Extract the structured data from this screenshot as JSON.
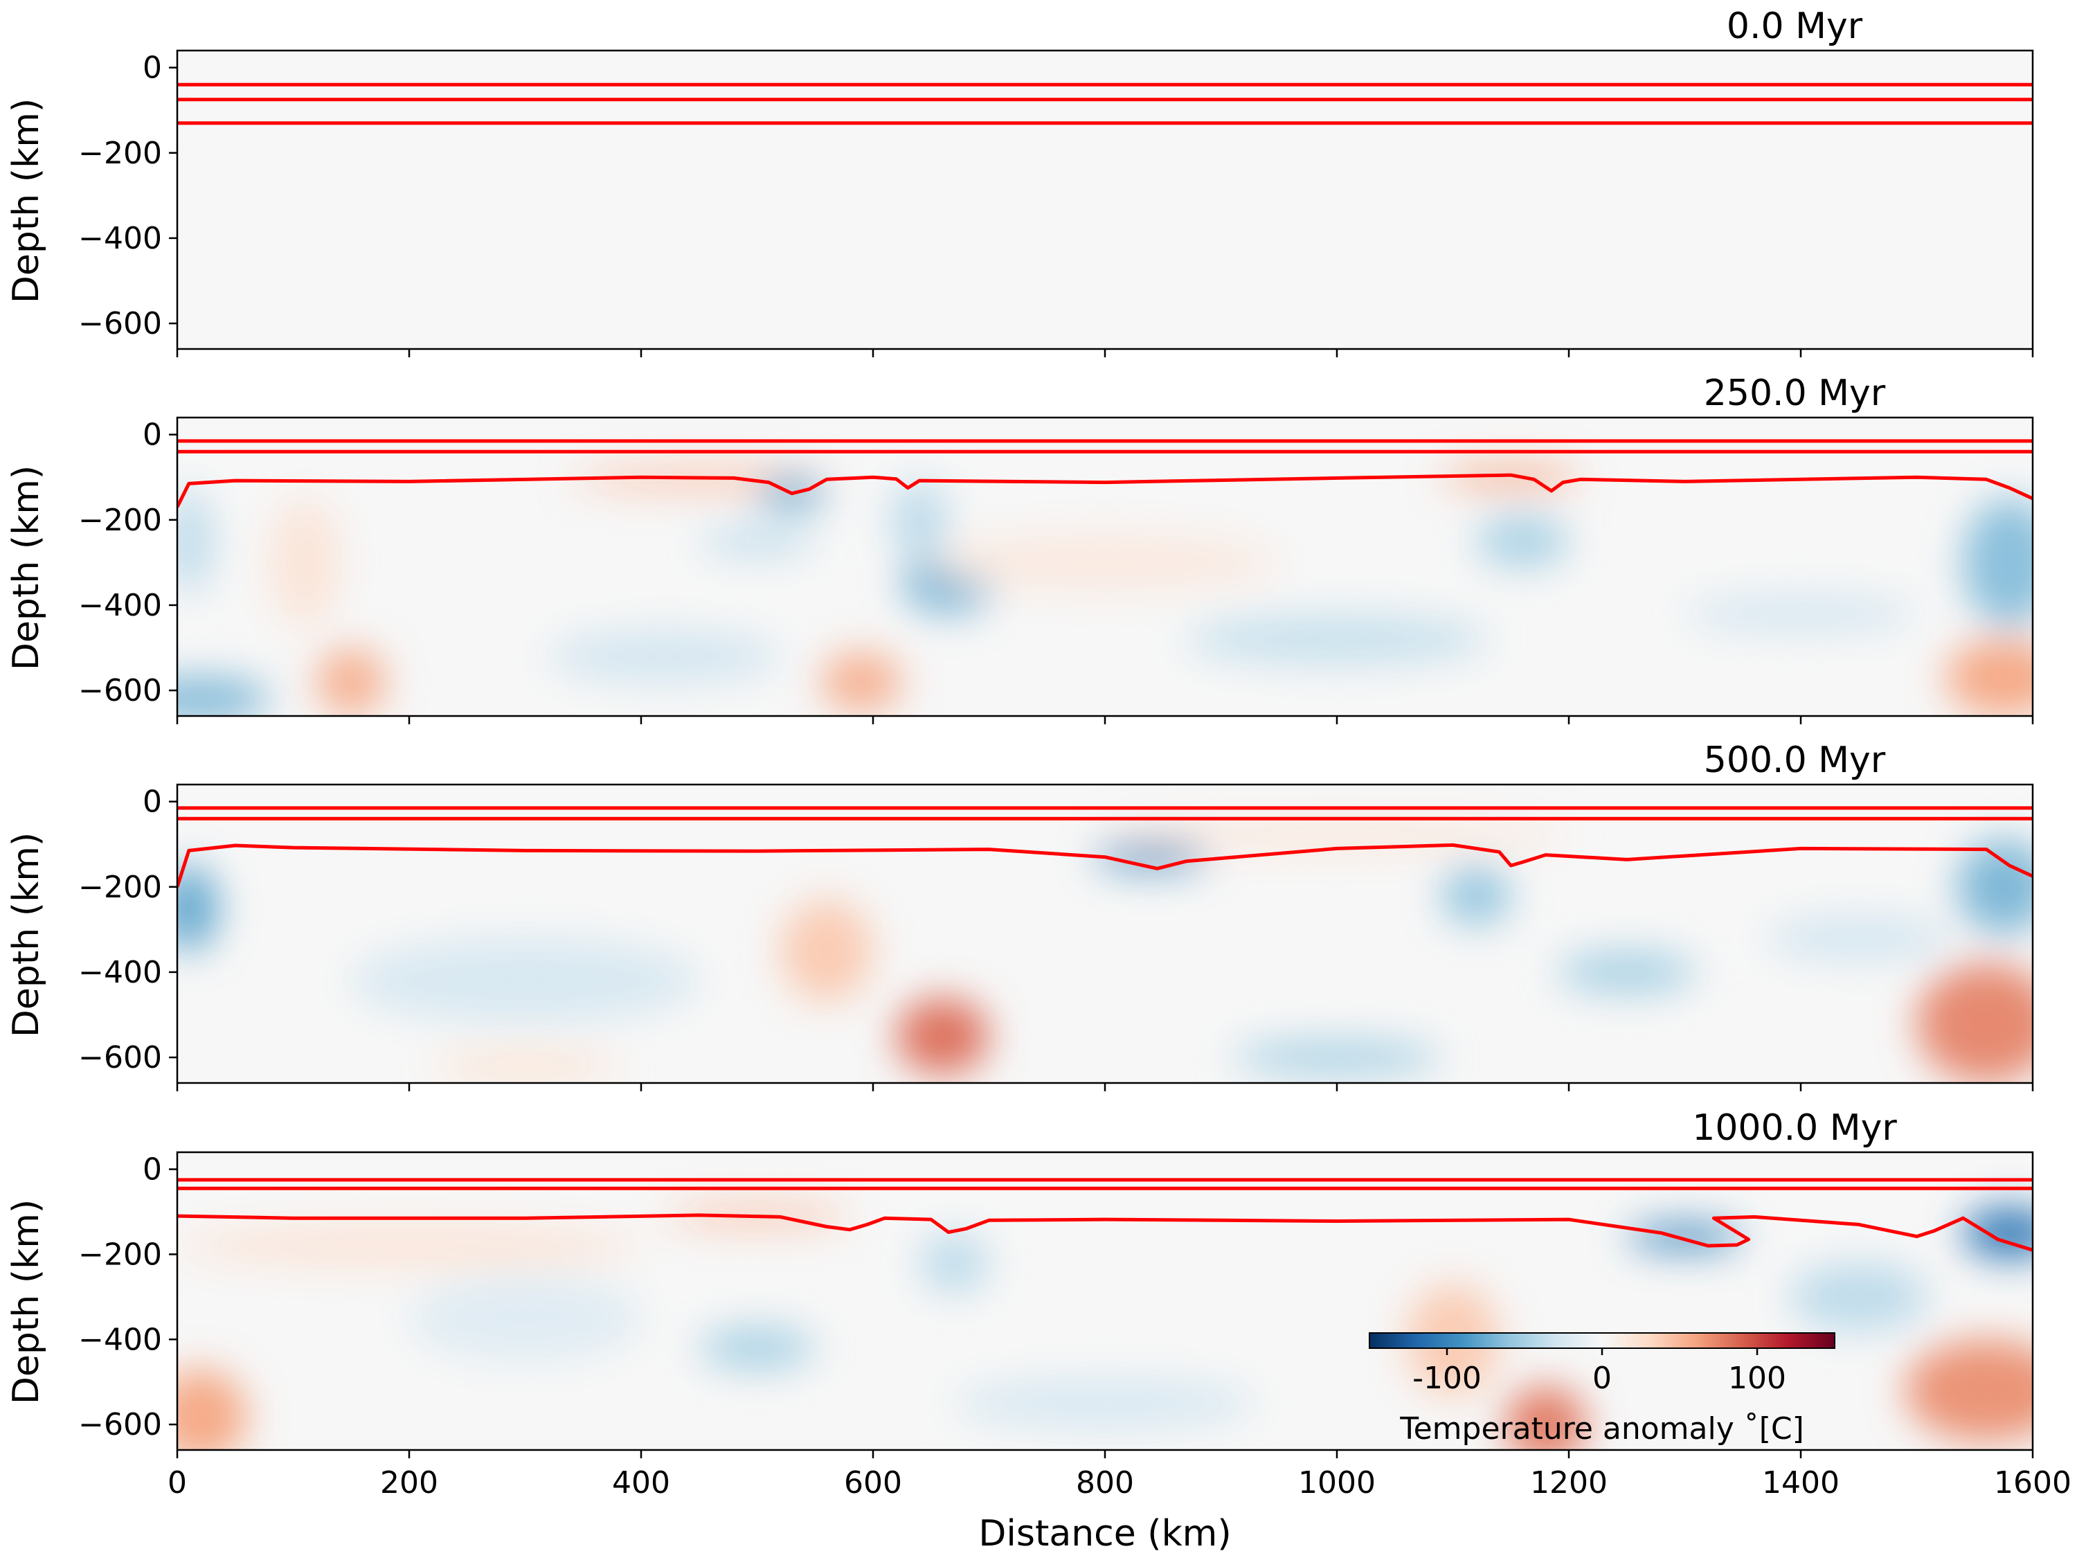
{
  "figure": {
    "xlabel": "Distance (km)",
    "ylabel": "Depth (km)"
  },
  "colorbar": {
    "label": "Temperature anomaly ˚[C]",
    "range": [
      -150,
      150
    ],
    "ticks": [
      -100,
      0,
      100
    ],
    "tick_labels": [
      "-100",
      "0",
      "100"
    ],
    "colormap": "RdBu_r",
    "colors": [
      "#053061",
      "#2166ac",
      "#4393c3",
      "#92c5de",
      "#d1e5f0",
      "#f7f7f7",
      "#fddbc7",
      "#f4a582",
      "#d6604d",
      "#b2182b",
      "#67001f"
    ]
  },
  "chart_data": [
    {
      "type": "heatmap",
      "title": "0.0 Myr",
      "xlabel": "",
      "ylabel": "Depth (km)",
      "xlim": [
        0,
        1600
      ],
      "ylim": [
        -660,
        40
      ],
      "yticks": [
        0,
        -200,
        -400,
        -600
      ],
      "ytick_labels": [
        "0",
        "−200",
        "−400",
        "−600"
      ],
      "xticks": [
        0,
        200,
        400,
        600,
        800,
        1000,
        1200,
        1400,
        1600
      ],
      "contours": [
        {
          "x": [
            0,
            1600
          ],
          "y": [
            -40,
            -40
          ]
        },
        {
          "x": [
            0,
            1600
          ],
          "y": [
            -75,
            -75
          ]
        },
        {
          "x": [
            0,
            1600
          ],
          "y": [
            -130,
            -130
          ]
        }
      ],
      "anomalies": []
    },
    {
      "type": "heatmap",
      "title": "250.0 Myr",
      "xlabel": "",
      "ylabel": "Depth (km)",
      "xlim": [
        0,
        1600
      ],
      "ylim": [
        -660,
        40
      ],
      "yticks": [
        0,
        -200,
        -400,
        -600
      ],
      "ytick_labels": [
        "0",
        "−200",
        "−400",
        "−600"
      ],
      "xticks": [
        0,
        200,
        400,
        600,
        800,
        1000,
        1200,
        1400,
        1600
      ],
      "contours": [
        {
          "x": [
            0,
            1600
          ],
          "y": [
            -15,
            -15
          ]
        },
        {
          "x": [
            0,
            1600
          ],
          "y": [
            -40,
            -40
          ]
        },
        {
          "x": [
            0,
            10,
            50,
            200,
            400,
            480,
            510,
            530,
            545,
            560,
            600,
            620,
            630,
            640,
            800,
            1000,
            1150,
            1170,
            1185,
            1195,
            1210,
            1300,
            1500,
            1560,
            1580,
            1600
          ],
          "y": [
            -170,
            -115,
            -108,
            -110,
            -100,
            -102,
            -112,
            -138,
            -128,
            -105,
            -100,
            -104,
            -125,
            -108,
            -112,
            -102,
            -95,
            -105,
            -132,
            -112,
            -105,
            -110,
            -100,
            -105,
            -125,
            -150
          ]
        }
      ],
      "anomalies": [
        {
          "x": 20,
          "y": -620,
          "rx": 60,
          "ry": 50,
          "v": -70
        },
        {
          "x": 10,
          "y": -250,
          "rx": 20,
          "ry": 120,
          "v": -40
        },
        {
          "x": 150,
          "y": -580,
          "rx": 30,
          "ry": 80,
          "v": 55
        },
        {
          "x": 110,
          "y": -300,
          "rx": 30,
          "ry": 150,
          "v": 20
        },
        {
          "x": 450,
          "y": -105,
          "rx": 110,
          "ry": 25,
          "v": 45
        },
        {
          "x": 530,
          "y": -140,
          "rx": 30,
          "ry": 40,
          "v": -70
        },
        {
          "x": 500,
          "y": -250,
          "rx": 50,
          "ry": 30,
          "v": -40
        },
        {
          "x": 665,
          "y": -350,
          "rx": 40,
          "ry": 70,
          "v": -70
        },
        {
          "x": 640,
          "y": -200,
          "rx": 25,
          "ry": 90,
          "v": -40
        },
        {
          "x": 590,
          "y": -580,
          "rx": 35,
          "ry": 70,
          "v": 55
        },
        {
          "x": 420,
          "y": -520,
          "rx": 100,
          "ry": 60,
          "v": -30
        },
        {
          "x": 1000,
          "y": -480,
          "rx": 130,
          "ry": 60,
          "v": -35
        },
        {
          "x": 1150,
          "y": -100,
          "rx": 60,
          "ry": 25,
          "v": 60
        },
        {
          "x": 1160,
          "y": -250,
          "rx": 40,
          "ry": 60,
          "v": -50
        },
        {
          "x": 1400,
          "y": -420,
          "rx": 100,
          "ry": 40,
          "v": -30
        },
        {
          "x": 1580,
          "y": -300,
          "rx": 40,
          "ry": 150,
          "v": -65
        },
        {
          "x": 1575,
          "y": -570,
          "rx": 50,
          "ry": 90,
          "v": 60
        },
        {
          "x": 800,
          "y": -300,
          "rx": 150,
          "ry": 70,
          "v": 15
        }
      ]
    },
    {
      "type": "heatmap",
      "title": "500.0 Myr",
      "xlabel": "",
      "ylabel": "Depth (km)",
      "xlim": [
        0,
        1600
      ],
      "ylim": [
        -660,
        40
      ],
      "yticks": [
        0,
        -200,
        -400,
        -600
      ],
      "ytick_labels": [
        "0",
        "−200",
        "−400",
        "−600"
      ],
      "xticks": [
        0,
        200,
        400,
        600,
        800,
        1000,
        1200,
        1400,
        1600
      ],
      "contours": [
        {
          "x": [
            0,
            1600
          ],
          "y": [
            -15,
            -15
          ]
        },
        {
          "x": [
            0,
            1600
          ],
          "y": [
            -40,
            -40
          ]
        },
        {
          "x": [
            0,
            10,
            50,
            100,
            300,
            500,
            700,
            800,
            845,
            870,
            1000,
            1100,
            1140,
            1150,
            1160,
            1180,
            1250,
            1400,
            1560,
            1580,
            1600
          ],
          "y": [
            -200,
            -115,
            -103,
            -108,
            -115,
            -116,
            -112,
            -130,
            -157,
            -140,
            -110,
            -102,
            -118,
            -150,
            -142,
            -125,
            -136,
            -110,
            -112,
            -150,
            -175
          ]
        }
      ],
      "anomalies": [
        {
          "x": 10,
          "y": -250,
          "rx": 25,
          "ry": 100,
          "v": -80
        },
        {
          "x": 840,
          "y": -130,
          "rx": 50,
          "ry": 30,
          "v": -90
        },
        {
          "x": 660,
          "y": -550,
          "rx": 40,
          "ry": 90,
          "v": 85
        },
        {
          "x": 560,
          "y": -350,
          "rx": 40,
          "ry": 120,
          "v": 40
        },
        {
          "x": 1120,
          "y": -220,
          "rx": 30,
          "ry": 70,
          "v": -60
        },
        {
          "x": 1250,
          "y": -400,
          "rx": 60,
          "ry": 50,
          "v": -50
        },
        {
          "x": 1000,
          "y": -600,
          "rx": 90,
          "ry": 40,
          "v": -50
        },
        {
          "x": 1575,
          "y": -200,
          "rx": 40,
          "ry": 110,
          "v": -70
        },
        {
          "x": 1560,
          "y": -520,
          "rx": 60,
          "ry": 140,
          "v": 75
        },
        {
          "x": 300,
          "y": -420,
          "rx": 150,
          "ry": 100,
          "v": -25
        },
        {
          "x": 1000,
          "y": -80,
          "rx": 200,
          "ry": 30,
          "v": 20
        },
        {
          "x": 1450,
          "y": -320,
          "rx": 80,
          "ry": 50,
          "v": -30
        },
        {
          "x": 300,
          "y": -620,
          "rx": 80,
          "ry": 30,
          "v": 25
        }
      ]
    },
    {
      "type": "heatmap",
      "title": "1000.0 Myr",
      "xlabel": "Distance (km)",
      "ylabel": "Depth (km)",
      "xlim": [
        0,
        1600
      ],
      "ylim": [
        -660,
        40
      ],
      "yticks": [
        0,
        -200,
        -400,
        -600
      ],
      "ytick_labels": [
        "0",
        "−200",
        "−400",
        "−600"
      ],
      "xticks": [
        0,
        200,
        400,
        600,
        800,
        1000,
        1200,
        1400,
        1600
      ],
      "xtick_labels": [
        "0",
        "200",
        "400",
        "600",
        "800",
        "1000",
        "1200",
        "1400",
        "1600"
      ],
      "contours": [
        {
          "x": [
            0,
            1600
          ],
          "y": [
            -25,
            -25
          ]
        },
        {
          "x": [
            0,
            1600
          ],
          "y": [
            -45,
            -45
          ]
        },
        {
          "x": [
            0,
            100,
            300,
            450,
            520,
            560,
            580,
            595,
            610,
            650,
            665,
            680,
            700,
            800,
            1000,
            1200,
            1280,
            1320,
            1345,
            1355,
            1325,
            1360,
            1450,
            1500,
            1515,
            1540,
            1570,
            1600
          ],
          "y": [
            -110,
            -115,
            -115,
            -108,
            -112,
            -135,
            -142,
            -130,
            -115,
            -118,
            -148,
            -140,
            -120,
            -118,
            -122,
            -118,
            -150,
            -180,
            -178,
            -165,
            -115,
            -112,
            -130,
            -158,
            -145,
            -115,
            -165,
            -190
          ]
        }
      ],
      "anomalies": [
        {
          "x": 20,
          "y": -580,
          "rx": 40,
          "ry": 110,
          "v": 60
        },
        {
          "x": 500,
          "y": -110,
          "rx": 80,
          "ry": 25,
          "v": 45
        },
        {
          "x": 500,
          "y": -420,
          "rx": 50,
          "ry": 50,
          "v": -50
        },
        {
          "x": 1300,
          "y": -160,
          "rx": 50,
          "ry": 30,
          "v": -100
        },
        {
          "x": 1180,
          "y": -600,
          "rx": 35,
          "ry": 90,
          "v": 80
        },
        {
          "x": 1100,
          "y": -400,
          "rx": 40,
          "ry": 130,
          "v": 40
        },
        {
          "x": 1580,
          "y": -150,
          "rx": 40,
          "ry": 60,
          "v": -110
        },
        {
          "x": 1560,
          "y": -520,
          "rx": 70,
          "ry": 120,
          "v": 70
        },
        {
          "x": 670,
          "y": -220,
          "rx": 30,
          "ry": 70,
          "v": -40
        },
        {
          "x": 800,
          "y": -550,
          "rx": 130,
          "ry": 60,
          "v": -25
        },
        {
          "x": 1450,
          "y": -300,
          "rx": 60,
          "ry": 80,
          "v": -40
        },
        {
          "x": 300,
          "y": -350,
          "rx": 100,
          "ry": 100,
          "v": -20
        },
        {
          "x": 200,
          "y": -180,
          "rx": 200,
          "ry": 50,
          "v": 20
        }
      ]
    }
  ]
}
